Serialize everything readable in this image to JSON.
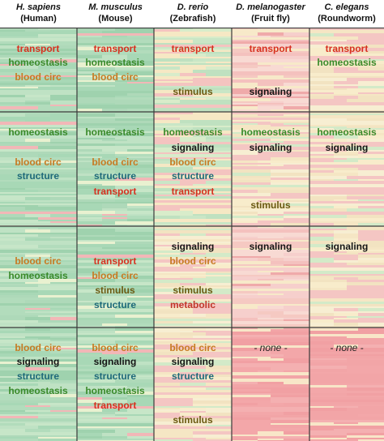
{
  "columns": [
    {
      "species": "H. sapiens",
      "common": "(Human)"
    },
    {
      "species": "M. musculus",
      "common": "(Mouse)"
    },
    {
      "species": "D. rerio",
      "common": "(Zebrafish)"
    },
    {
      "species": "D. melanogaster",
      "common": "(Fruit fly)"
    },
    {
      "species": "C. elegans",
      "common": "(Roundworm)"
    }
  ],
  "colors": {
    "transport": "#d7301f",
    "homeostasis": "#3a8a2a",
    "blood_circ": "#c77a22",
    "stimulus": "#6b5a12",
    "signaling": "#151515",
    "structure": "#1f6a7a",
    "metabolic": "#c0392b",
    "none": "#222222",
    "green_bg": "#a9d9b8",
    "pink_bg": "#f4b6b6",
    "cream_bg": "#f7ecc8",
    "grid_line": "#3a3a3a"
  },
  "labels": {
    "c0": {
      "b0": [
        "transport",
        "homeostasis",
        "blood circ"
      ],
      "b1": [
        "homeostasis",
        "blood circ",
        "structure"
      ],
      "b2": [
        "blood circ",
        "homeostasis"
      ],
      "b3": [
        "blood circ",
        "signaling",
        "structure",
        "homeostasis"
      ]
    },
    "c1": {
      "b0": [
        "transport",
        "homeostasis",
        "blood circ"
      ],
      "b1": [
        "homeostasis",
        "blood circ",
        "structure",
        "transport"
      ],
      "b2": [
        "transport",
        "blood circ",
        "stimulus",
        "structure"
      ],
      "b3": [
        "blood circ",
        "signaling",
        "structure",
        "homeostasis",
        "transport"
      ]
    },
    "c2": {
      "b0": [
        "transport",
        "stimulus"
      ],
      "b1": [
        "homeostasis",
        "signaling",
        "blood circ",
        "structure",
        "transport"
      ],
      "b2": [
        "signaling",
        "blood circ",
        "stimulus",
        "metabolic"
      ],
      "b3": [
        "blood circ",
        "signaling",
        "structure",
        "stimulus"
      ]
    },
    "c3": {
      "b0": [
        "transport",
        "signaling"
      ],
      "b1": [
        "homeostasis",
        "signaling",
        "stimulus"
      ],
      "b2": [
        "signaling"
      ],
      "b3": [
        "- none -"
      ]
    },
    "c4": {
      "b0": [
        "transport",
        "homeostasis"
      ],
      "b1": [
        "homeostasis",
        "signaling"
      ],
      "b2": [
        "signaling"
      ],
      "b3": [
        "- none -"
      ]
    }
  }
}
